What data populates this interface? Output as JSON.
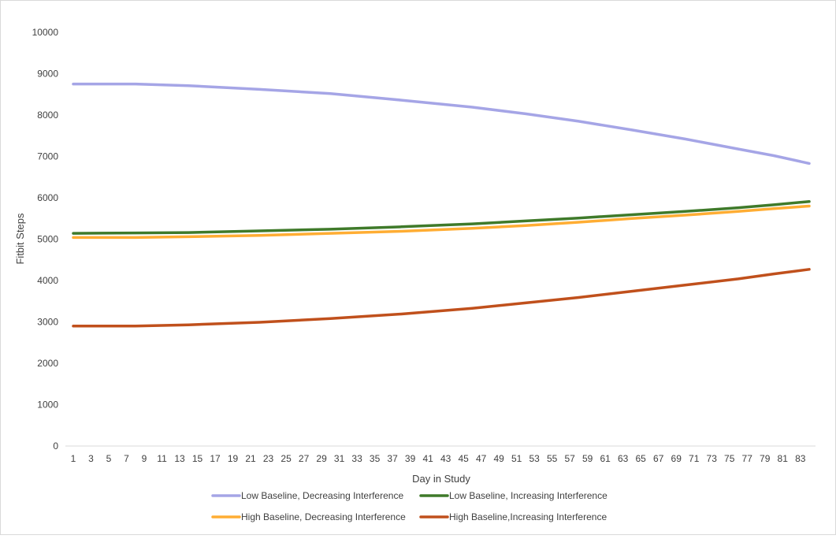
{
  "chart_data": {
    "type": "line",
    "title": "",
    "xlabel": "Day in Study",
    "ylabel": "Fitbit Steps",
    "ylim": [
      0,
      10000
    ],
    "yticks": [
      0,
      1000,
      2000,
      3000,
      4000,
      5000,
      6000,
      7000,
      8000,
      9000,
      10000
    ],
    "xlim": [
      1,
      84
    ],
    "xtick_labels": [
      "1",
      "3",
      "5",
      "7",
      "9",
      "11",
      "13",
      "15",
      "17",
      "19",
      "21",
      "23",
      "25",
      "27",
      "29",
      "31",
      "33",
      "35",
      "37",
      "39",
      "41",
      "43",
      "45",
      "47",
      "49",
      "51",
      "53",
      "55",
      "57",
      "59",
      "61",
      "63",
      "65",
      "67",
      "69",
      "71",
      "73",
      "75",
      "77",
      "79",
      "81",
      "83"
    ],
    "grid": false,
    "legend_position": "bottom",
    "series": [
      {
        "name": "Low Baseline, Decreasing Interference",
        "color": "#a5a5e6",
        "x": [
          1,
          8,
          14,
          22,
          30,
          38,
          46,
          52,
          58,
          64,
          70,
          76,
          80,
          84
        ],
        "y": [
          8750,
          8750,
          8710,
          8620,
          8520,
          8360,
          8190,
          8030,
          7850,
          7640,
          7420,
          7180,
          7020,
          6830
        ]
      },
      {
        "name": "Low Baseline, Increasing Interference",
        "color": "#3f7a2a",
        "x": [
          1,
          8,
          14,
          22,
          30,
          38,
          46,
          52,
          58,
          64,
          70,
          76,
          80,
          84
        ],
        "y": [
          5140,
          5150,
          5160,
          5200,
          5240,
          5300,
          5370,
          5440,
          5510,
          5590,
          5670,
          5760,
          5830,
          5910
        ]
      },
      {
        "name": "High Baseline, Decreasing Interference",
        "color": "#ffad33",
        "x": [
          1,
          8,
          14,
          22,
          30,
          38,
          46,
          52,
          58,
          64,
          70,
          76,
          80,
          84
        ],
        "y": [
          5040,
          5040,
          5060,
          5090,
          5140,
          5190,
          5260,
          5330,
          5410,
          5500,
          5580,
          5670,
          5740,
          5800
        ]
      },
      {
        "name": "High Baseline,Increasing Interference",
        "color": "#c0501c",
        "x": [
          1,
          8,
          14,
          22,
          30,
          38,
          46,
          52,
          58,
          64,
          70,
          76,
          80,
          84
        ],
        "y": [
          2900,
          2900,
          2930,
          2990,
          3080,
          3190,
          3330,
          3460,
          3590,
          3740,
          3890,
          4040,
          4160,
          4270
        ]
      }
    ]
  }
}
